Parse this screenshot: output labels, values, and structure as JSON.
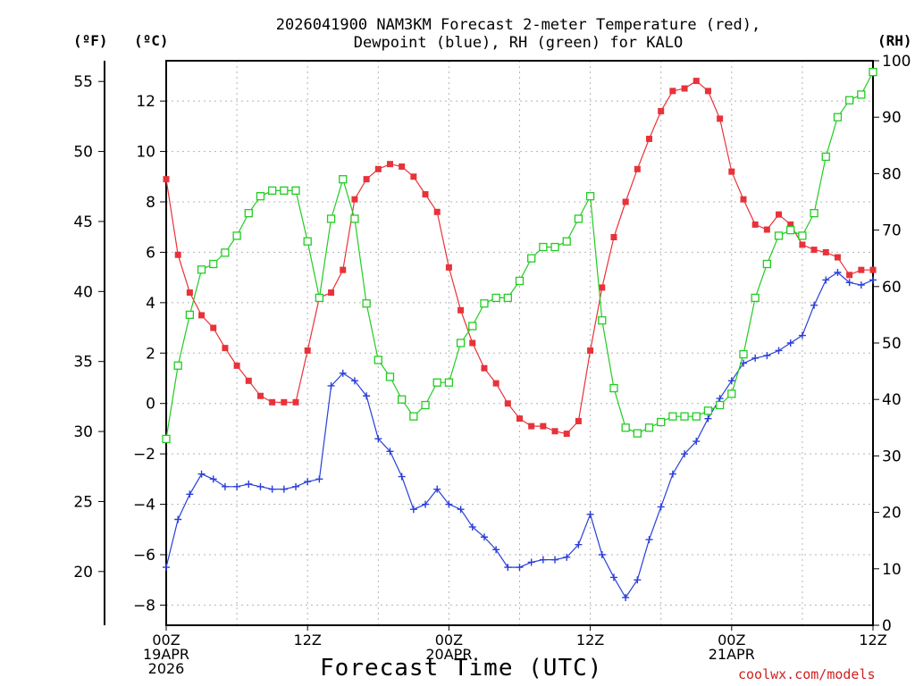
{
  "title_line1": "2026041900 NAM3KM Forecast 2-meter Temperature (red),",
  "title_line2": "Dewpoint (blue), RH (green) for KALO",
  "unit_f": "(ºF)",
  "unit_c": "(ºC)",
  "unit_rh": "(RH)",
  "xaxis_title": "Forecast Time (UTC)",
  "credit": "coolwx.com/models",
  "colors": {
    "temperature": "#e8323a",
    "dewpoint": "#2a3fd8",
    "rh": "#22cc22"
  },
  "chart_data": {
    "type": "line",
    "title": "2026041900 NAM3KM Forecast 2-meter Temperature (red), Dewpoint (blue), RH (green) for KALO",
    "xlabel": "Forecast Time (UTC)",
    "x_unit": "forecast hour",
    "x": [
      0,
      1,
      2,
      3,
      4,
      5,
      6,
      7,
      8,
      9,
      10,
      11,
      12,
      13,
      14,
      15,
      16,
      17,
      18,
      19,
      20,
      21,
      22,
      23,
      24,
      25,
      26,
      27,
      28,
      29,
      30,
      31,
      32,
      33,
      34,
      35,
      36,
      37,
      38,
      39,
      40,
      41,
      42,
      43,
      44,
      45,
      46,
      47,
      48,
      49,
      50,
      51,
      52,
      53,
      54,
      55,
      56,
      57,
      58,
      59,
      60
    ],
    "xlim": [
      0,
      60
    ],
    "x_ticks": [
      {
        "hour": 0,
        "lines": [
          "00Z",
          "19APR",
          "2026"
        ]
      },
      {
        "hour": 12,
        "lines": [
          "12Z"
        ]
      },
      {
        "hour": 24,
        "lines": [
          "00Z",
          "20APR"
        ]
      },
      {
        "hour": 36,
        "lines": [
          "12Z"
        ]
      },
      {
        "hour": 48,
        "lines": [
          "00Z",
          "21APR"
        ]
      },
      {
        "hour": 60,
        "lines": [
          "12Z"
        ]
      }
    ],
    "left_axis_f": {
      "label": "ºF",
      "ticks": [
        20,
        25,
        30,
        35,
        40,
        45,
        50,
        55
      ]
    },
    "left_axis_c": {
      "label": "ºC",
      "ylim": [
        -8.8,
        13.6
      ],
      "ticks": [
        "−8",
        "−6",
        "−4",
        "−2",
        "0",
        "2",
        "4",
        "6",
        "8",
        "10",
        "12"
      ]
    },
    "right_axis": {
      "label": "RH",
      "ylim": [
        0,
        100
      ],
      "ticks": [
        0,
        10,
        20,
        30,
        40,
        50,
        60,
        70,
        80,
        90,
        100
      ]
    },
    "series": [
      {
        "name": "Temperature (red)",
        "axis": "celsius",
        "marker": "filled-square",
        "values": [
          8.9,
          5.9,
          4.4,
          3.5,
          3.0,
          2.2,
          1.5,
          0.9,
          0.3,
          0.05,
          0.05,
          0.05,
          2.1,
          4.2,
          4.4,
          5.3,
          8.1,
          8.9,
          9.3,
          9.5,
          9.4,
          9.0,
          8.3,
          7.6,
          5.4,
          3.7,
          2.4,
          1.4,
          0.8,
          0.0,
          -0.6,
          -0.9,
          -0.9,
          -1.1,
          -1.2,
          -0.7,
          2.1,
          4.6,
          6.6,
          8.0,
          9.3,
          10.5,
          11.6,
          12.4,
          12.5,
          12.8,
          12.4,
          11.3,
          9.2,
          8.1,
          7.1,
          6.9,
          7.5,
          7.1,
          6.3,
          6.1,
          6.0,
          5.8,
          5.1,
          5.3,
          5.3
        ]
      },
      {
        "name": "Dewpoint (blue)",
        "axis": "celsius",
        "marker": "plus",
        "values": [
          -6.5,
          -4.6,
          -3.6,
          -2.8,
          -3.0,
          -3.3,
          -3.3,
          -3.2,
          -3.3,
          -3.4,
          -3.4,
          -3.3,
          -3.1,
          -3.0,
          0.7,
          1.2,
          0.9,
          0.3,
          -1.4,
          -1.9,
          -2.9,
          -4.2,
          -4.0,
          -3.4,
          -4.0,
          -4.2,
          -4.9,
          -5.3,
          -5.8,
          -6.5,
          -6.5,
          -6.3,
          -6.2,
          -6.2,
          -6.1,
          -5.6,
          -4.4,
          -6.0,
          -6.9,
          -7.7,
          -7.0,
          -5.4,
          -4.1,
          -2.8,
          -2.0,
          -1.5,
          -0.6,
          0.2,
          0.9,
          1.6,
          1.8,
          1.9,
          2.1,
          2.4,
          2.7,
          3.9,
          4.9,
          5.2,
          4.8,
          4.7,
          4.9
        ]
      },
      {
        "name": "RH (green)",
        "axis": "rh",
        "marker": "open-square",
        "values": [
          33,
          46,
          55,
          63,
          64,
          66,
          69,
          73,
          76,
          77,
          77,
          77,
          68,
          58,
          72,
          79,
          72,
          57,
          47,
          44,
          40,
          37,
          39,
          43,
          43,
          50,
          53,
          57,
          58,
          58,
          61,
          65,
          67,
          67,
          68,
          72,
          76,
          54,
          42,
          35,
          34,
          35,
          36,
          37,
          37,
          37,
          38,
          39,
          41,
          48,
          58,
          64,
          69,
          70,
          69,
          73,
          83,
          90,
          93,
          94,
          98
        ]
      }
    ]
  }
}
